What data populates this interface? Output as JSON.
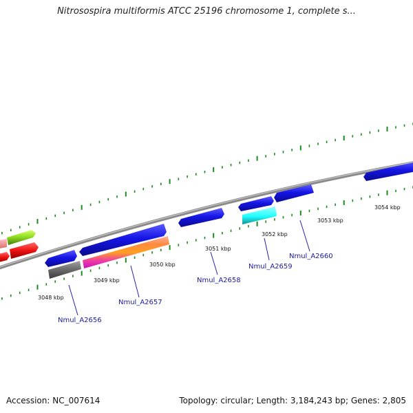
{
  "title": "Nitrosospira multiformis ATCC 25196 chromosome 1, complete s...",
  "footer": {
    "accession": "Accession: NC_007614",
    "summary": "Topology: circular; Length: 3,184,243 bp; Genes: 2,805"
  },
  "colors": {
    "backbone": "#8a8a8a",
    "tick": "#1a8a1a",
    "gene_blue": "#1515e6",
    "label": "#1a1aa0"
  },
  "scale_labels": [
    "3048 kbp",
    "3049 kbp",
    "3050 kbp",
    "3051 kbp",
    "3052 kbp",
    "3053 kbp",
    "3054 kbp"
  ],
  "gene_labels": [
    "Nmul_A2656",
    "Nmul_A2657",
    "Nmul_A2658",
    "Nmul_A2659",
    "Nmul_A2660"
  ]
}
